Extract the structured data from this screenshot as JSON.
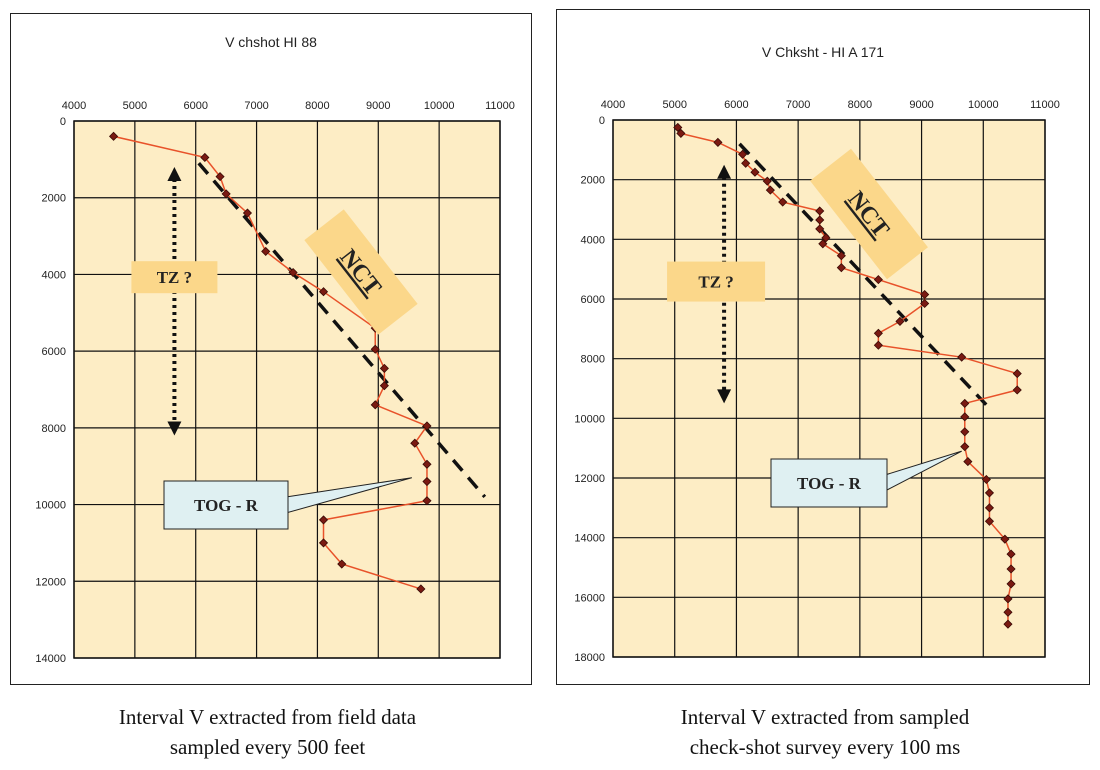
{
  "chart_data": [
    {
      "type": "line",
      "title": "V chshot HI 88",
      "caption": [
        "Interval V extracted from field data",
        "sampled every 500 feet"
      ],
      "xlim": [
        4000,
        11000
      ],
      "xticks": [
        4000,
        5000,
        6000,
        7000,
        8000,
        9000,
        10000,
        11000
      ],
      "ylim": [
        0,
        14000
      ],
      "yticks": [
        0,
        2000,
        4000,
        6000,
        8000,
        10000,
        12000,
        14000
      ],
      "y_inverted": true,
      "grid": true,
      "series": [
        {
          "name": "interval-velocity",
          "points": [
            [
              4650,
              400
            ],
            [
              6150,
              950
            ],
            [
              6400,
              1450
            ],
            [
              6500,
              1900
            ],
            [
              6850,
              2400
            ],
            [
              7150,
              3400
            ],
            [
              7600,
              3950
            ],
            [
              8100,
              4450
            ],
            [
              8950,
              5400
            ],
            [
              8950,
              5950
            ],
            [
              9100,
              6450
            ],
            [
              9100,
              6900
            ],
            [
              8950,
              7400
            ],
            [
              9800,
              7950
            ],
            [
              9600,
              8400
            ],
            [
              9800,
              8950
            ],
            [
              9800,
              9400
            ],
            [
              9800,
              9900
            ],
            [
              8100,
              10400
            ],
            [
              8100,
              11000
            ],
            [
              8400,
              11550
            ],
            [
              9700,
              12200
            ]
          ]
        }
      ],
      "nct_line": [
        [
          6050,
          1100
        ],
        [
          10750,
          9800
        ]
      ],
      "annotations": {
        "tz": "TZ ?",
        "nct": "NCT",
        "tog": "TOG - R"
      },
      "tz_arrow_range": [
        1200,
        8200
      ],
      "tz_arrow_x": 5650,
      "tog_target": [
        9550,
        9300
      ]
    },
    {
      "type": "line",
      "title": "V  Chksht - HI A 171",
      "caption": [
        "Interval V extracted from sampled",
        "check-shot survey every 100 ms"
      ],
      "xlim": [
        4000,
        11000
      ],
      "xticks": [
        4000,
        5000,
        6000,
        7000,
        8000,
        9000,
        10000,
        11000
      ],
      "ylim": [
        0,
        18000
      ],
      "yticks": [
        0,
        2000,
        4000,
        6000,
        8000,
        10000,
        12000,
        14000,
        16000,
        18000
      ],
      "y_inverted": true,
      "grid": true,
      "series": [
        {
          "name": "interval-velocity",
          "points": [
            [
              5050,
              250
            ],
            [
              5100,
              450
            ],
            [
              5700,
              750
            ],
            [
              6100,
              1150
            ],
            [
              6150,
              1450
            ],
            [
              6300,
              1750
            ],
            [
              6500,
              2050
            ],
            [
              6550,
              2350
            ],
            [
              6750,
              2750
            ],
            [
              7350,
              3050
            ],
            [
              7350,
              3350
            ],
            [
              7350,
              3650
            ],
            [
              7450,
              3950
            ],
            [
              7400,
              4150
            ],
            [
              7700,
              4550
            ],
            [
              7700,
              4950
            ],
            [
              8300,
              5350
            ],
            [
              9050,
              5850
            ],
            [
              9050,
              6150
            ],
            [
              8650,
              6750
            ],
            [
              8300,
              7150
            ],
            [
              8300,
              7550
            ],
            [
              9650,
              7950
            ],
            [
              10550,
              8500
            ],
            [
              10550,
              9050
            ],
            [
              9700,
              9500
            ],
            [
              9700,
              9950
            ],
            [
              9700,
              10450
            ],
            [
              9700,
              10950
            ],
            [
              9750,
              11450
            ],
            [
              10050,
              12050
            ],
            [
              10100,
              12500
            ],
            [
              10100,
              13000
            ],
            [
              10100,
              13450
            ],
            [
              10350,
              14050
            ],
            [
              10450,
              14550
            ],
            [
              10450,
              15050
            ],
            [
              10450,
              15550
            ],
            [
              10400,
              16050
            ],
            [
              10400,
              16500
            ],
            [
              10400,
              16900
            ]
          ]
        }
      ],
      "nct_line": [
        [
          6050,
          800
        ],
        [
          10050,
          9550
        ]
      ],
      "annotations": {
        "tz": "TZ ?",
        "nct": "NCT",
        "tog": "TOG - R"
      },
      "tz_arrow_range": [
        1500,
        9500
      ],
      "tz_arrow_x": 5800,
      "tog_target": [
        9650,
        11100
      ]
    }
  ]
}
